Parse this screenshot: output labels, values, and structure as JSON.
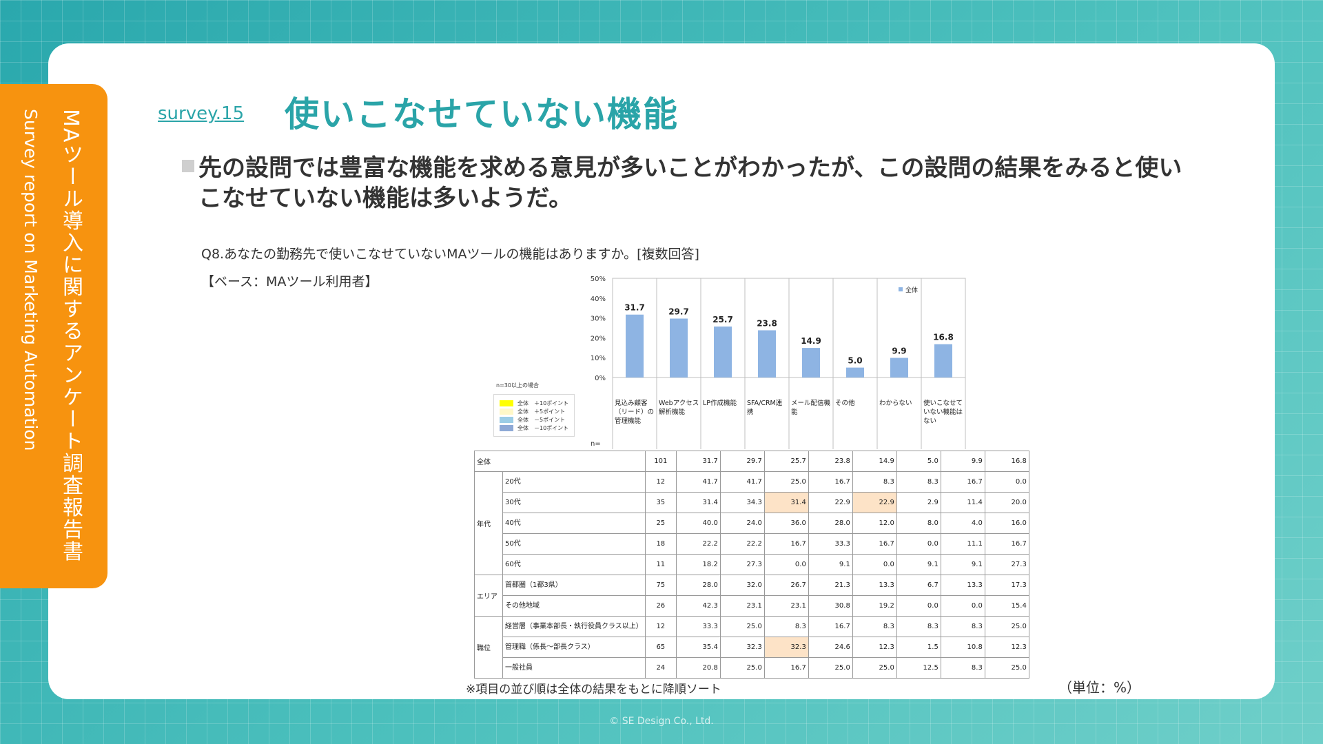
{
  "side": {
    "title_jp": "MAツール導入に関するアンケート調査報告書",
    "title_en": "Survey report on Marketing Automation"
  },
  "header": {
    "survey_no": "survey.15",
    "title": "使いこなせていない機能"
  },
  "lead": "先の設問では豊富な機能を求める意見が多いことがわかったが、この設問の結果をみると使いこなせていない機能は多いようだ。",
  "question": "Q8.あなたの勤務先で使いこなせていないMAツールの機能はありますか。[複数回答]",
  "base": "【ベース：MAツール利用者】",
  "note": "※項目の並び順は全体の結果をもとに降順ソート",
  "unit": "（単位：%）",
  "copyright": "© SE Design Co., Ltd.",
  "mini_legend": {
    "title": "n=30以上の場合",
    "items": [
      {
        "label": "全体　＋10ポイント",
        "color": "#ffff00"
      },
      {
        "label": "全体　＋5ポイント",
        "color": "#fff8c8"
      },
      {
        "label": "全体　－5ポイント",
        "color": "#9ccde6"
      },
      {
        "label": "全体　－10ポイント",
        "color": "#8ea9d6"
      }
    ]
  },
  "chart_data": {
    "type": "bar",
    "categories": [
      "見込み顧客（リード）の管理機能",
      "Webアクセス解析機能",
      "LP作成機能",
      "SFA/CRM連携",
      "メール配信機能",
      "その他",
      "わからない",
      "使いこなせていない機能はない"
    ],
    "category_lines": [
      [
        "見込み顧客",
        "（リード）の",
        "管理機能"
      ],
      [
        "Webアクセス",
        "解析機能"
      ],
      [
        "LP作成機能"
      ],
      [
        "SFA/CRM連",
        "携"
      ],
      [
        "メール配信機",
        "能"
      ],
      [
        "その他"
      ],
      [
        "わからない"
      ],
      [
        "使いこなせて",
        "いない機能は",
        "ない"
      ]
    ],
    "series": [
      {
        "name": "全体",
        "values": [
          31.7,
          29.7,
          25.7,
          23.8,
          14.9,
          5.0,
          9.9,
          16.8
        ]
      }
    ],
    "value_labels": [
      "31.7",
      "29.7",
      "25.7",
      "23.8",
      "14.9",
      "5.0",
      "9.9",
      "16.8"
    ],
    "yticks": [
      "50%",
      "40%",
      "30%",
      "20%",
      "10%",
      "0%"
    ],
    "ylim": [
      0,
      50
    ],
    "bar_color": "#8eb4e3",
    "legend": "top-right"
  },
  "table": {
    "n_header": "n=",
    "total": {
      "label": "全体",
      "n": "101",
      "values": [
        "31.7",
        "29.7",
        "25.7",
        "23.8",
        "14.9",
        "5.0",
        "9.9",
        "16.8"
      ]
    },
    "groups": [
      {
        "label": "年代",
        "rows": [
          {
            "label": "20代",
            "n": "12",
            "values": [
              "41.7",
              "41.7",
              "25.0",
              "16.7",
              "8.3",
              "8.3",
              "16.7",
              "0.0"
            ],
            "hl": []
          },
          {
            "label": "30代",
            "n": "35",
            "values": [
              "31.4",
              "34.3",
              "31.4",
              "22.9",
              "22.9",
              "2.9",
              "11.4",
              "20.0"
            ],
            "hl": [
              2,
              4
            ]
          },
          {
            "label": "40代",
            "n": "25",
            "values": [
              "40.0",
              "24.0",
              "36.0",
              "28.0",
              "12.0",
              "8.0",
              "4.0",
              "16.0"
            ],
            "hl": []
          },
          {
            "label": "50代",
            "n": "18",
            "values": [
              "22.2",
              "22.2",
              "16.7",
              "33.3",
              "16.7",
              "0.0",
              "11.1",
              "16.7"
            ],
            "hl": []
          },
          {
            "label": "60代",
            "n": "11",
            "values": [
              "18.2",
              "27.3",
              "0.0",
              "9.1",
              "0.0",
              "9.1",
              "9.1",
              "27.3"
            ],
            "hl": []
          }
        ]
      },
      {
        "label": "エリア",
        "rows": [
          {
            "label": "首都圏（1都3県）",
            "n": "75",
            "values": [
              "28.0",
              "32.0",
              "26.7",
              "21.3",
              "13.3",
              "6.7",
              "13.3",
              "17.3"
            ],
            "hl": []
          },
          {
            "label": "その他地域",
            "n": "26",
            "values": [
              "42.3",
              "23.1",
              "23.1",
              "30.8",
              "19.2",
              "0.0",
              "0.0",
              "15.4"
            ],
            "hl": []
          }
        ]
      },
      {
        "label": "職位",
        "rows": [
          {
            "label": "経営層（事業本部長・執行役員クラス以上）",
            "n": "12",
            "values": [
              "33.3",
              "25.0",
              "8.3",
              "16.7",
              "8.3",
              "8.3",
              "8.3",
              "25.0"
            ],
            "hl": []
          },
          {
            "label": "管理職（係長～部長クラス）",
            "n": "65",
            "values": [
              "35.4",
              "32.3",
              "32.3",
              "24.6",
              "12.3",
              "1.5",
              "10.8",
              "12.3"
            ],
            "hl": [
              2
            ]
          },
          {
            "label": "一般社員",
            "n": "24",
            "values": [
              "20.8",
              "25.0",
              "16.7",
              "25.0",
              "25.0",
              "12.5",
              "8.3",
              "25.0"
            ],
            "hl": []
          }
        ]
      }
    ]
  }
}
